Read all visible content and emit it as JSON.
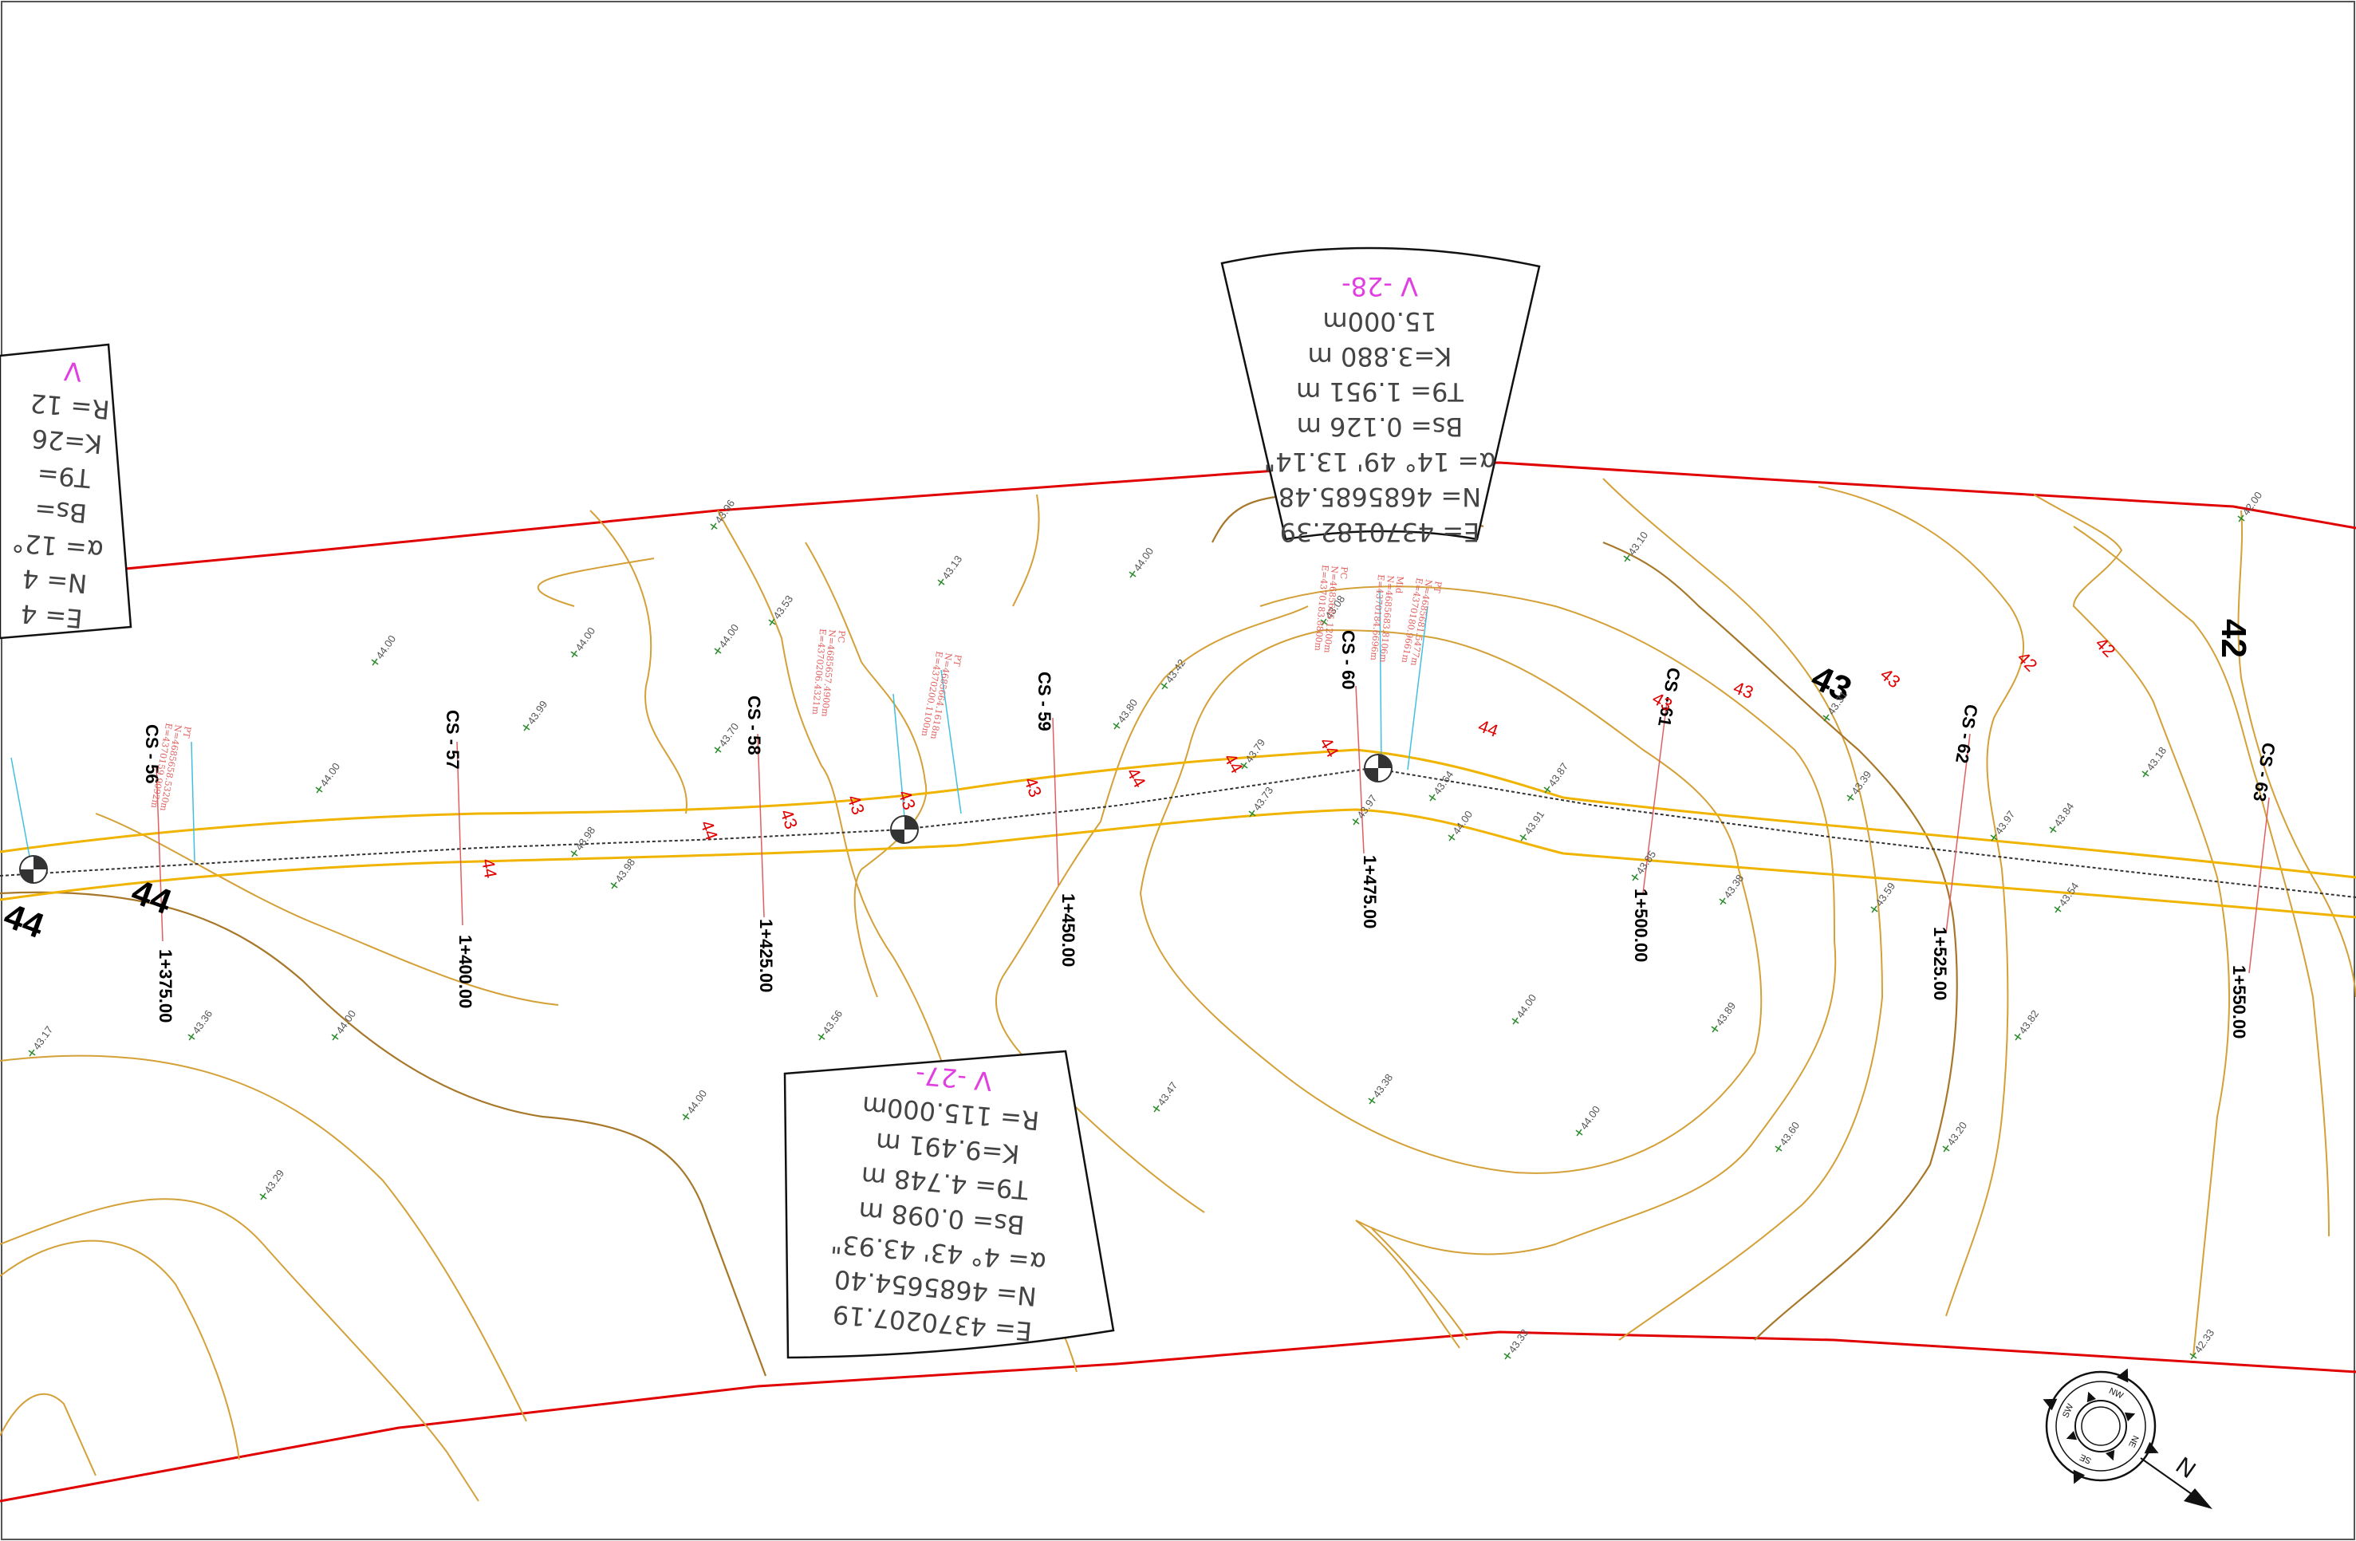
{
  "curves": {
    "v27": {
      "title": "V  -27-",
      "R": "R=  115.000m",
      "K": "K=9.491  m",
      "T": "T9=  4.748  m",
      "Bs": "Bs=  0.098  m",
      "alpha": "α=  4°  43'  43.93\"",
      "N": "N=  4685654.40",
      "E": "E=  437020​7.19"
    },
    "v28": {
      "title": "V  -28-",
      "R": "15.000m",
      "K": "K=3.880  m",
      "T": "T9=  1.951  m",
      "Bs": "Bs=  0.126  m",
      "alpha": "α=  14°  49'  13.14\"",
      "N": "N=  4685685.48",
      "E": "E=  4370182.39"
    },
    "v26": {
      "title": "V",
      "R": "R=  12",
      "K": "K=26",
      "T": "T9=",
      "Bs": "Bs=",
      "alpha": "α=  12°",
      "N": "N=  4",
      "E": "E=  4"
    }
  },
  "cross_sections": [
    {
      "cs": "CS - 56",
      "station": "1+375.00"
    },
    {
      "cs": "CS - 57",
      "station": "1+400.00"
    },
    {
      "cs": "CS - 58",
      "station": "1+425.00"
    },
    {
      "cs": "CS - 59",
      "station": "1+450.00"
    },
    {
      "cs": "CS - 60",
      "station": "1+475.00"
    },
    {
      "cs": "CS - 61",
      "station": "1+500.00"
    },
    {
      "cs": "CS - 62",
      "station": "1+525.00"
    },
    {
      "cs": "CS - 63",
      "station": "1+550.00"
    }
  ],
  "contour_labels": {
    "big": [
      "44",
      "43",
      "42",
      "44"
    ],
    "red": [
      "44",
      "44",
      "43",
      "43",
      "43",
      "44",
      "44",
      "44",
      "43",
      "43",
      "43",
      "42",
      "42",
      "43",
      "44"
    ]
  },
  "spot_heights": [
    "44.00",
    "44.00",
    "44.00",
    "43.99",
    "43.98",
    "43.98",
    "43.96",
    "43.53",
    "43.70",
    "43.13",
    "44.00",
    "43.42",
    "43.79",
    "43.80",
    "43.64",
    "43.10",
    "42.00",
    "43.18",
    "43.97",
    "43.84",
    "44.00",
    "43.97",
    "44.00",
    "43.91",
    "43.87",
    "43.73",
    "43.59",
    "43.38",
    "43.39",
    "43.31",
    "43.54",
    "43.08",
    "44.00",
    "43.85",
    "43.60",
    "43.20",
    "43.47",
    "43.33",
    "43.89",
    "43.82",
    "44.00",
    "44.00",
    "43.17",
    "43.36",
    "43.29",
    "44.00",
    "43.38",
    "43.35",
    "43.56",
    "42.33"
  ],
  "point_notes": {
    "a": [
      "PT",
      "N=4685658.5320m",
      "E=4370159.9092m"
    ],
    "b": [
      "PT",
      "N=4685664.1618m",
      "E=4370200.1100m"
    ],
    "c": [
      "PC",
      "N=4685657.4900m",
      "E=4370206.4321m"
    ],
    "d": [
      "Mid",
      "N=4685683.8106m",
      "E=4370184.6696m"
    ],
    "e": [
      "PC",
      "N=4685685.1200m",
      "E=4370183.8800m"
    ],
    "f": [
      "PT",
      "N=4685681.5477m",
      "E=4370180.9661m"
    ]
  },
  "north_arrow": {
    "label": "N",
    "rose": [
      "NW",
      "NE",
      "SE",
      "SW"
    ]
  }
}
